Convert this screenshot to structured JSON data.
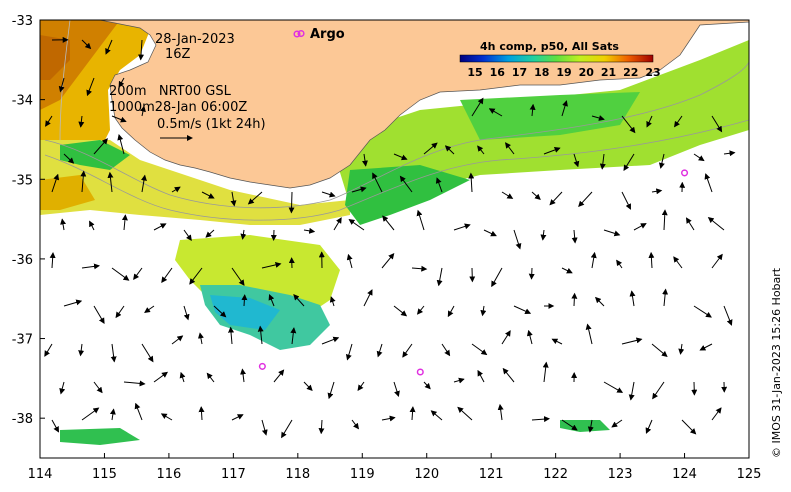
{
  "header": {
    "date": "28-Jan-2023",
    "hour": "16Z",
    "argo_label": "Argo"
  },
  "legend": {
    "line1": "200m   NRT00 GSL",
    "line2": "1000m28-Jan 06:00Z",
    "line3": "0.5m/s (1kt 24h)"
  },
  "colorbar": {
    "title": "4h comp, p50, All Sats",
    "ticks": [
      "15",
      "16",
      "17",
      "18",
      "19",
      "20",
      "21",
      "22",
      "23"
    ]
  },
  "credit": "© IMOS 31-Jan-2023 15:26 Hobart",
  "axes": {
    "x_ticks": [
      "114",
      "115",
      "116",
      "117",
      "118",
      "119",
      "120",
      "121",
      "122",
      "123",
      "124",
      "125"
    ],
    "y_ticks": [
      "-33",
      "-34",
      "-35",
      "-36",
      "-37",
      "-38"
    ],
    "x_range": [
      114,
      125
    ],
    "y_range": [
      -38.5,
      -33
    ]
  },
  "argo_floats": [
    {
      "lon": 117.45,
      "lat": -37.35
    },
    {
      "lon": 119.9,
      "lat": -37.42
    },
    {
      "lon": 124.0,
      "lat": -34.92
    },
    {
      "lon": 118.05,
      "lat": -33.17
    }
  ],
  "colors": {
    "land": "#fcc896",
    "sea": "#ffffff",
    "argo": "#e030e0"
  }
}
